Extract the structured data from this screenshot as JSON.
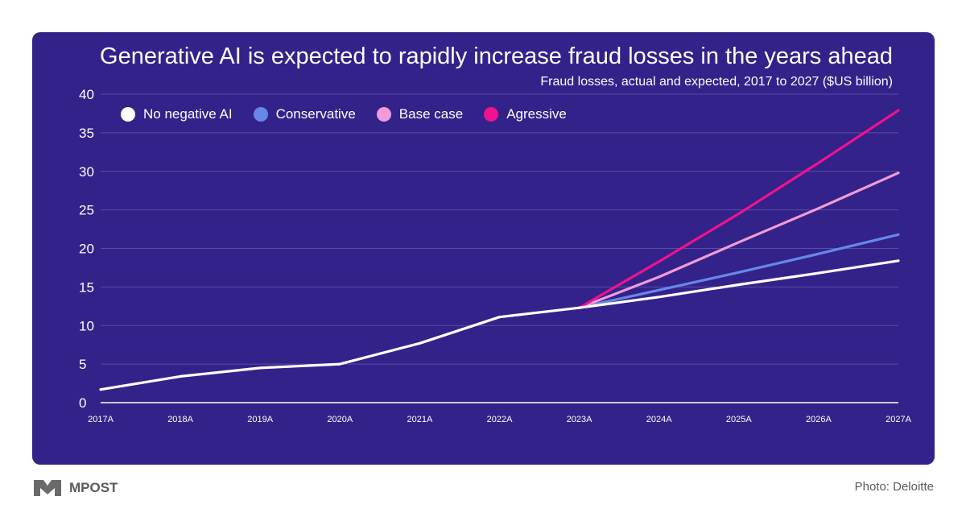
{
  "chart_data": {
    "type": "line",
    "title": "Generative AI is expected to rapidly increase fraud losses in the years ahead",
    "subtitle": "Fraud losses, actual and expected, 2017 to 2027 ($US billion)",
    "x": [
      "2017A",
      "2018A",
      "2019A",
      "2020A",
      "2021A",
      "2022A",
      "2023A",
      "2024A",
      "2025A",
      "2026A",
      "2027A"
    ],
    "ylim": [
      0,
      40
    ],
    "yticks": [
      0,
      5,
      10,
      15,
      20,
      25,
      30,
      35,
      40
    ],
    "grid": true,
    "legend_position": "top-left",
    "series": [
      {
        "name": "No negative AI",
        "color": "#ffffff",
        "values": [
          1.7,
          3.4,
          4.5,
          5.0,
          7.7,
          11.1,
          12.3,
          13.7,
          15.3,
          16.8,
          18.4
        ]
      },
      {
        "name": "Conservative",
        "color": "#6688e8",
        "values": [
          null,
          null,
          null,
          null,
          null,
          null,
          12.3,
          14.6,
          16.9,
          19.3,
          21.8
        ]
      },
      {
        "name": "Base case",
        "color": "#f29bd6",
        "values": [
          null,
          null,
          null,
          null,
          null,
          null,
          12.3,
          16.3,
          20.8,
          25.2,
          29.8
        ]
      },
      {
        "name": "Agressive",
        "color": "#f0128e",
        "values": [
          null,
          null,
          null,
          null,
          null,
          null,
          12.3,
          18.3,
          24.5,
          31.1,
          37.9
        ]
      }
    ]
  },
  "footer": {
    "brand": "MPOST",
    "credit": "Photo: Deloitte"
  },
  "colors": {
    "background": "#33228a",
    "grid": "#5a4ea3",
    "axis": "#ffffff"
  }
}
